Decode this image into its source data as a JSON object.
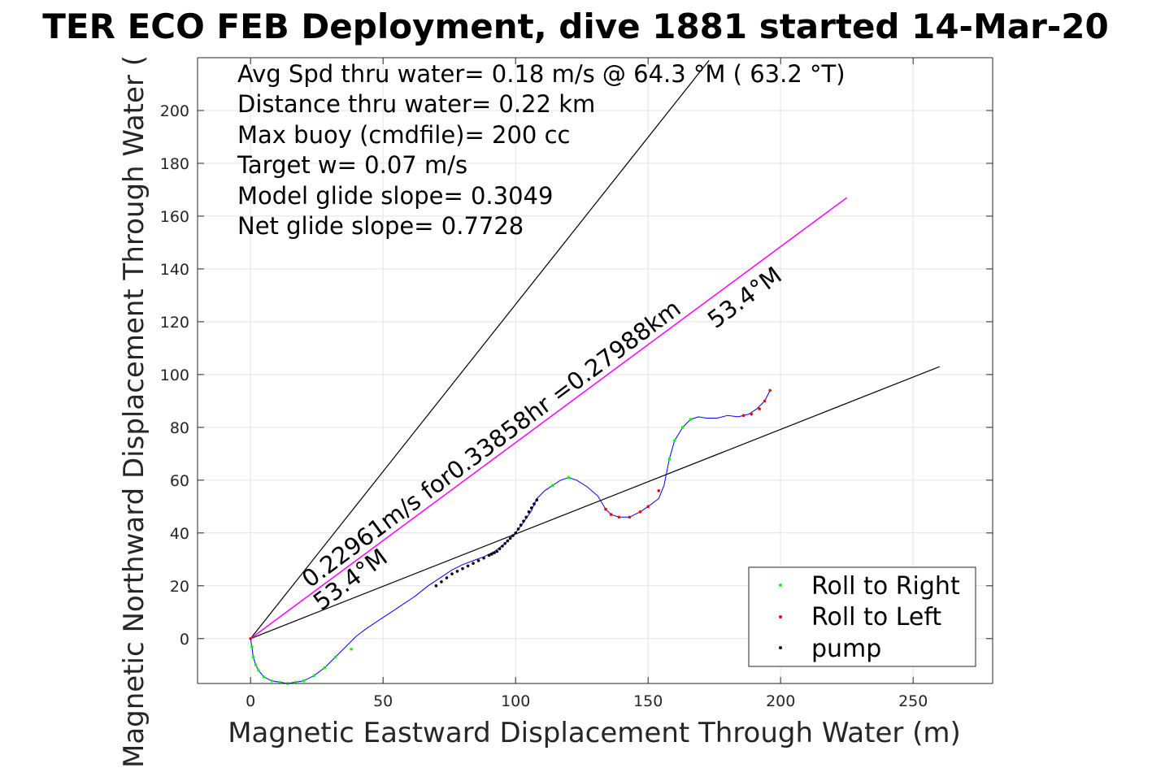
{
  "chart_data": {
    "type": "line",
    "title": "TER ECO FEB Deployment, dive 1881 started 14-Mar-20",
    "xlabel": "Magnetic Eastward Displacement Through Water (m)",
    "ylabel": "Magnetic Northward Displacement Through Water (",
    "xlim": [
      -20,
      280
    ],
    "ylim": [
      -17,
      220
    ],
    "xticks": [
      0,
      50,
      100,
      150,
      200,
      250
    ],
    "yticks": [
      0,
      20,
      40,
      60,
      80,
      100,
      120,
      140,
      160,
      180,
      200
    ],
    "grid": true,
    "legend_position": "bottom-right",
    "info_lines": [
      "Avg Spd thru water=  0.18 m/s @  64.3 °M ( 63.2 °T)",
      "Distance thru water=  0.22 km",
      "Max buoy (cmdfile)= 200 cc",
      "Target w= 0.07 m/s",
      "Model glide slope= 0.3049",
      "Net glide slope= 0.7728"
    ],
    "annotations": {
      "track_label": "0.22961m/s for0.33858hr =0.27988km",
      "heading_upper": "53.4°M",
      "heading_lower": "53.4°M"
    },
    "legend": [
      {
        "label": "Roll to Right",
        "color": "#00ff00"
      },
      {
        "label": "Roll to Left",
        "color": "#ff0000"
      },
      {
        "label": "pump",
        "color": "#000000"
      }
    ],
    "colors": {
      "track": "#0000ff",
      "net": "#ff00ff",
      "cone": "#000000"
    },
    "cone_lines": [
      {
        "x": [
          0,
          173
        ],
        "y": [
          0,
          219
        ]
      },
      {
        "x": [
          0,
          260
        ],
        "y": [
          0,
          103
        ]
      }
    ],
    "net_line": {
      "x": [
        0,
        225
      ],
      "y": [
        0,
        167
      ]
    },
    "track": {
      "x": [
        0,
        0.5,
        1,
        2,
        3,
        5,
        8,
        11,
        14,
        17,
        20,
        24,
        28,
        32,
        36,
        40,
        44,
        50,
        56,
        62,
        67,
        70,
        73,
        76,
        80,
        84,
        88,
        92,
        96,
        100,
        103,
        106,
        108,
        111,
        114,
        117,
        120,
        123,
        127,
        131,
        134,
        136,
        139,
        143,
        147,
        150,
        154,
        156,
        158,
        160,
        163,
        166,
        169,
        172,
        176,
        180,
        184,
        188,
        191,
        194,
        196
      ],
      "y": [
        0,
        -3,
        -7,
        -10,
        -12,
        -14.5,
        -16,
        -16.5,
        -17,
        -16.5,
        -16,
        -14,
        -11,
        -7,
        -3,
        1,
        4,
        8,
        12,
        16,
        20,
        22,
        24,
        26,
        28,
        29.5,
        31,
        33,
        36,
        40,
        44,
        48.5,
        53,
        56,
        58,
        60,
        61,
        60,
        57.5,
        54,
        49,
        47,
        46,
        46,
        48,
        50,
        53,
        58,
        68,
        75,
        80,
        83,
        84,
        83.5,
        83.5,
        84.5,
        84,
        85,
        87,
        90,
        94
      ]
    },
    "markers": {
      "right": {
        "x": [
          0,
          0.5,
          1,
          2,
          3,
          5,
          8,
          11,
          14,
          17,
          20,
          24,
          28,
          32,
          38,
          114,
          120,
          158,
          160,
          163,
          166
        ],
        "y": [
          0,
          -3,
          -7,
          -10,
          -12,
          -14.5,
          -16,
          -16.5,
          -17,
          -16.5,
          -16,
          -14,
          -11,
          -7,
          -4,
          58,
          61,
          68,
          75,
          80,
          83
        ]
      },
      "left": {
        "x": [
          0,
          134,
          136,
          139,
          143,
          147,
          150,
          154,
          186,
          189,
          192,
          194,
          196
        ],
        "y": [
          0,
          49,
          47,
          46,
          46,
          48,
          50,
          56,
          84.5,
          85,
          87,
          90,
          94
        ]
      },
      "pump": {
        "x": [
          70,
          72,
          74,
          76,
          78,
          80,
          82,
          84,
          86,
          88,
          90,
          91,
          92,
          93,
          94,
          95,
          96,
          97,
          98,
          99,
          100,
          101,
          102,
          103,
          104,
          105,
          106,
          107,
          108
        ],
        "y": [
          20,
          21.5,
          23,
          24.5,
          25.5,
          26.5,
          27.5,
          28.5,
          29.5,
          30.5,
          31.5,
          32,
          32.5,
          33,
          34,
          35,
          36,
          37,
          38,
          39,
          40,
          41.5,
          43,
          44.5,
          46,
          48,
          49.5,
          51,
          52.5
        ]
      }
    }
  }
}
